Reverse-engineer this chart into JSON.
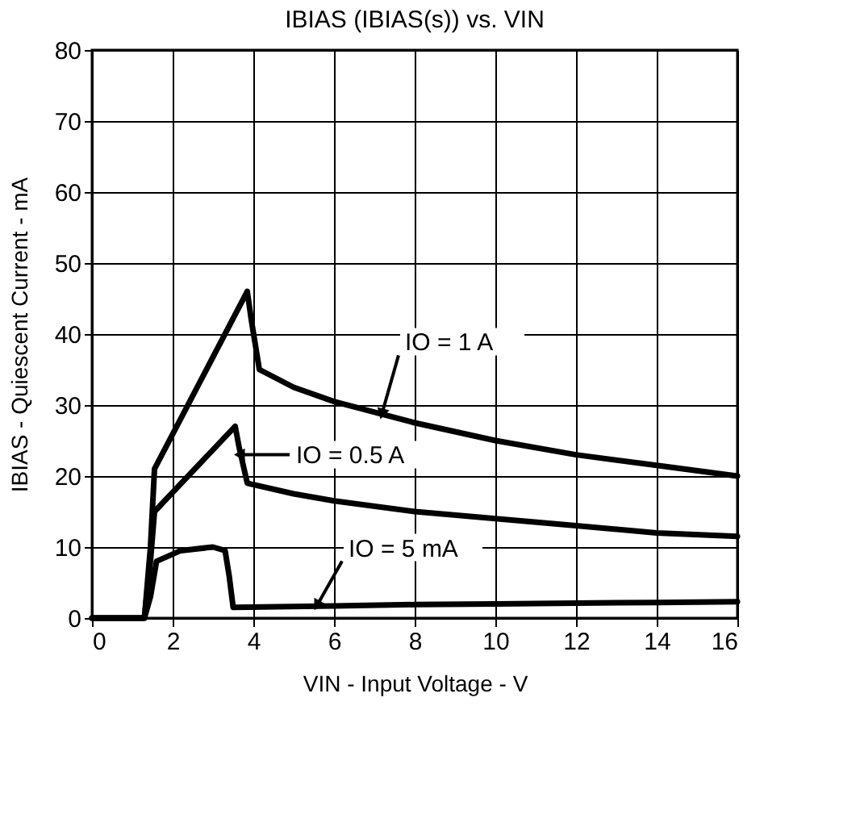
{
  "chart_data": {
    "type": "line",
    "title": "IBIAS (IBIAS(s)) vs. VIN",
    "xlabel": "VIN - Input Voltage - V",
    "ylabel": "IBIAS - Quiescent Current - mA",
    "xlim": [
      0,
      16
    ],
    "xticks": [
      0,
      2,
      4,
      6,
      8,
      10,
      12,
      14,
      16
    ],
    "ylim": [
      0,
      80
    ],
    "yticks": [
      0,
      10,
      20,
      30,
      40,
      50,
      60,
      70,
      80
    ],
    "grid": true,
    "marker": "none",
    "line_style": "solid",
    "series": [
      {
        "color": "#000000",
        "x": [
          0,
          1.3,
          1.45,
          1.55,
          3.85,
          3.95,
          4.15,
          5,
          6,
          8,
          10,
          12,
          14,
          16
        ],
        "values": [
          0,
          0,
          10,
          21,
          46,
          42,
          35,
          32.5,
          30.5,
          27.5,
          25,
          23,
          21.5,
          20
        ]
      },
      {
        "color": "#000000",
        "x": [
          0,
          1.3,
          1.45,
          1.55,
          3.55,
          3.65,
          3.85,
          5,
          6,
          8,
          10,
          12,
          14,
          16
        ],
        "values": [
          0,
          0,
          8,
          15,
          27,
          24,
          19,
          17.5,
          16.5,
          15,
          14,
          13,
          12,
          11.5
        ]
      },
      {
        "color": "#000000",
        "x": [
          0,
          1.3,
          1.45,
          1.6,
          2.2,
          3.0,
          3.3,
          3.4,
          3.5,
          6,
          8,
          10,
          12,
          14,
          16
        ],
        "values": [
          0,
          0,
          3,
          8,
          9.5,
          10,
          9.5,
          6,
          1.5,
          1.7,
          1.9,
          2,
          2.1,
          2.2,
          2.3
        ]
      }
    ],
    "annotations": [
      {
        "text": "IO = 1 A",
        "x": 7.2,
        "y": 29
      },
      {
        "text": "IO = 0.5 A",
        "x": 3.7,
        "y": 23
      },
      {
        "text": "IO = 5 mA",
        "x": 5.6,
        "y": 2
      }
    ]
  }
}
